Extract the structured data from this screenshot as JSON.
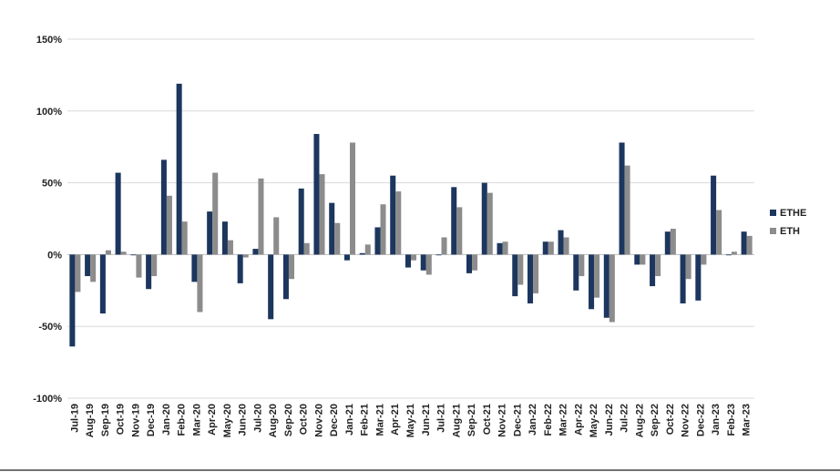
{
  "chart_data": {
    "type": "bar",
    "categories": [
      "Jul-19",
      "Aug-19",
      "Sep-19",
      "Oct-19",
      "Nov-19",
      "Dec-19",
      "Jan-20",
      "Feb-20",
      "Mar-20",
      "Apr-20",
      "May-20",
      "Jun-20",
      "Jul-20",
      "Aug-20",
      "Sep-20",
      "Oct-20",
      "Nov-20",
      "Dec-20",
      "Jan-21",
      "Feb-21",
      "Mar-21",
      "Apr-21",
      "May-21",
      "Jun-21",
      "Jul-21",
      "Aug-21",
      "Sep-21",
      "Oct-21",
      "Nov-21",
      "Dec-21",
      "Jan-22",
      "Feb-22",
      "Mar-22",
      "Apr-22",
      "May-22",
      "Jun-22",
      "Jul-22",
      "Aug-22",
      "Sep-22",
      "Oct-22",
      "Nov-22",
      "Dec-22",
      "Jan-23",
      "Feb-23",
      "Mar-23"
    ],
    "series": [
      {
        "name": "ETHE",
        "color": "#1c365e",
        "values": [
          -64,
          -15,
          -41,
          57,
          0,
          -24,
          66,
          119,
          -19,
          30,
          23,
          -20,
          4,
          -45,
          -31,
          46,
          84,
          36,
          -4,
          1,
          19,
          55,
          -9,
          -11,
          0,
          47,
          -13,
          50,
          8,
          -29,
          -34,
          9,
          17,
          -25,
          -38,
          -44,
          78,
          -7,
          -22,
          16,
          -34,
          -32,
          55,
          0,
          16
        ]
      },
      {
        "name": "ETH",
        "color": "#8c8c8c",
        "values": [
          -26,
          -19,
          3,
          2,
          -16,
          -15,
          41,
          23,
          -40,
          57,
          10,
          -2,
          53,
          26,
          -17,
          8,
          56,
          22,
          78,
          7,
          35,
          44,
          -4,
          -14,
          12,
          33,
          -11,
          43,
          9,
          -21,
          -27,
          9,
          12,
          -15,
          -30,
          -47,
          62,
          -7,
          -15,
          18,
          -17,
          -7,
          31,
          2,
          13
        ]
      }
    ],
    "y_ticks": [
      "150%",
      "100%",
      "50%",
      "0%",
      "-50%",
      "-100%"
    ],
    "ylim": [
      -100,
      150
    ],
    "grid": "horizontal",
    "legend_position": "right"
  }
}
